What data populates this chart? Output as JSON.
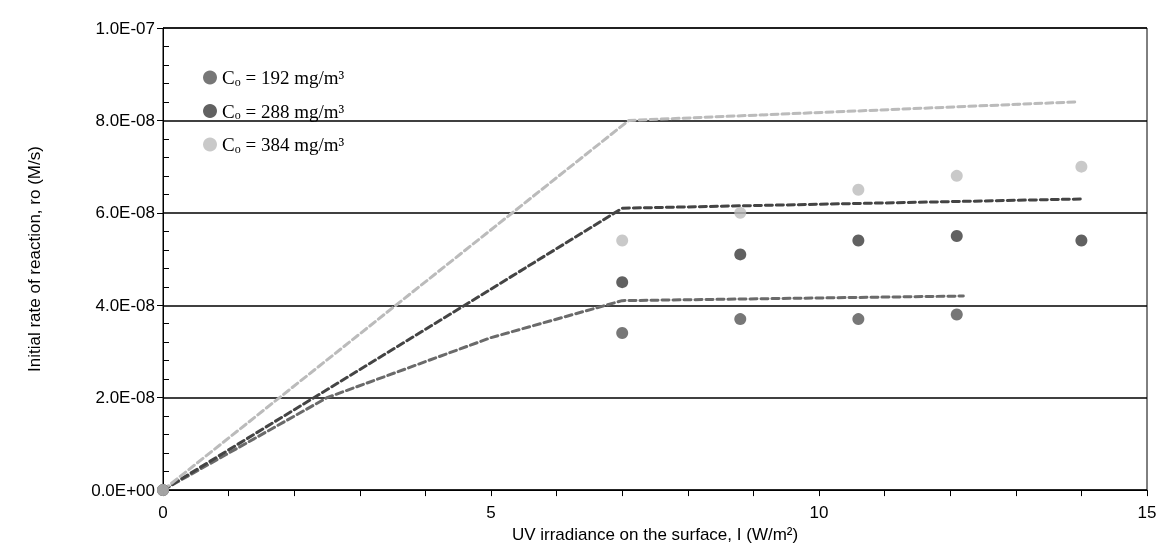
{
  "chart_data": {
    "type": "scatter",
    "xlabel": "UV irradiance on the surface, I (W/m²)",
    "ylabel": "Initial rate of reaction, ro (M/s)",
    "xlim": [
      0,
      15
    ],
    "ylim": [
      0,
      1e-07
    ],
    "xticks": [
      0,
      {
        "value": 1,
        "label": null
      },
      {
        "value": 2,
        "label": null
      },
      {
        "value": 3,
        "label": null
      },
      {
        "value": 4,
        "label": null
      },
      5,
      {
        "value": 6,
        "label": null
      },
      {
        "value": 7,
        "label": null
      },
      {
        "value": 8,
        "label": null
      },
      {
        "value": 9,
        "label": null
      },
      10,
      {
        "value": 11,
        "label": null
      },
      {
        "value": 12,
        "label": null
      },
      {
        "value": 13,
        "label": null
      },
      {
        "value": 14,
        "label": null
      },
      15
    ],
    "yticks": [
      {
        "value": 0,
        "label": "0.0E+00"
      },
      {
        "value": 4e-09,
        "label": null
      },
      {
        "value": 8e-09,
        "label": null
      },
      {
        "value": 1.2e-08,
        "label": null
      },
      {
        "value": 1.6e-08,
        "label": null
      },
      {
        "value": 2e-08,
        "label": "2.0E-08"
      },
      {
        "value": 2.4e-08,
        "label": null
      },
      {
        "value": 2.8e-08,
        "label": null
      },
      {
        "value": 3.2e-08,
        "label": null
      },
      {
        "value": 3.6e-08,
        "label": null
      },
      {
        "value": 4e-08,
        "label": "4.0E-08"
      },
      {
        "value": 4.4e-08,
        "label": null
      },
      {
        "value": 4.8e-08,
        "label": null
      },
      {
        "value": 5.2e-08,
        "label": null
      },
      {
        "value": 5.6e-08,
        "label": null
      },
      {
        "value": 6e-08,
        "label": "6.0E-08"
      },
      {
        "value": 6.4e-08,
        "label": null
      },
      {
        "value": 6.8e-08,
        "label": null
      },
      {
        "value": 7.2e-08,
        "label": null
      },
      {
        "value": 7.6e-08,
        "label": null
      },
      {
        "value": 8e-08,
        "label": "8.0E-08"
      },
      {
        "value": 8.4e-08,
        "label": null
      },
      {
        "value": 8.8e-08,
        "label": null
      },
      {
        "value": 9.2e-08,
        "label": null
      },
      {
        "value": 9.6e-08,
        "label": null
      },
      {
        "value": 1e-07,
        "label": "1.0E-07"
      }
    ],
    "grid": "y",
    "legend": "top left",
    "marker": "circle",
    "series": [
      {
        "name": "C$_{o}$ = 192 mg/m³",
        "color": "#555555",
        "x": [
          0,
          7.0,
          8.8,
          10.6,
          12.1
        ],
        "values": [
          0,
          3.4e-08,
          3.7e-08,
          3.7e-08,
          3.8e-08
        ]
      },
      {
        "name": "C$_{o}$ = 288 mg/m³",
        "color": "#3a3a3a",
        "x": [
          0,
          7.0,
          8.8,
          10.6,
          12.1,
          14.0
        ],
        "values": [
          0,
          4.5e-08,
          5.1e-08,
          5.4e-08,
          5.5e-08,
          5.4e-08
        ]
      },
      {
        "name": "C$_{o}$ = 384 mg/m³",
        "color": "#bbbbbb",
        "x": [
          0,
          7.0,
          8.8,
          10.6,
          12.1,
          14.0
        ],
        "values": [
          0,
          5.4e-08,
          6e-08,
          6.5e-08,
          6.8e-08,
          7e-08
        ]
      },
      {
        "type": "line",
        "color": "#6a6a6a",
        "line_style": "dashed",
        "marker": "none",
        "x": [
          0,
          1,
          2.5,
          5,
          7,
          12.2
        ],
        "values": [
          0,
          8e-09,
          2e-08,
          3.3e-08,
          4.1e-08,
          4.2e-08
        ]
      },
      {
        "type": "line",
        "color": "#444444",
        "line_style": "dashed",
        "marker": "none",
        "x": [
          0,
          2.3,
          4.6,
          7,
          14
        ],
        "values": [
          0,
          2e-08,
          4e-08,
          6.1e-08,
          6.3e-08
        ]
      },
      {
        "type": "line",
        "color": "#bbbbbb",
        "line_style": "dashed",
        "marker": "none",
        "x": [
          0,
          7.1,
          13.9
        ],
        "values": [
          0,
          8e-08,
          8.4e-08
        ]
      }
    ]
  }
}
